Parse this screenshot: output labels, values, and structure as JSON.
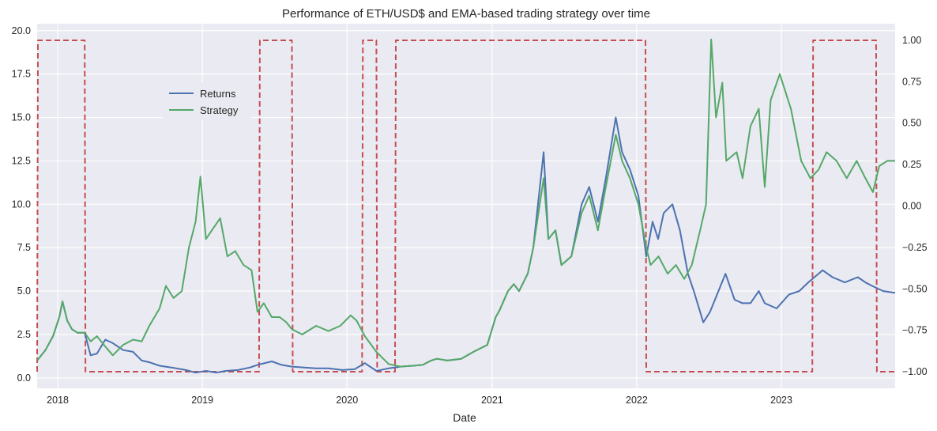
{
  "chart_data": {
    "type": "line",
    "title": "Performance of ETH/USD$ and EMA-based trading strategy over time",
    "xlabel": "Date",
    "ylabel": "",
    "x_ticks": [
      "2018",
      "2019",
      "2020",
      "2021",
      "2022",
      "2023"
    ],
    "y_left_ticks": [
      "0.0",
      "2.5",
      "5.0",
      "7.5",
      "10.0",
      "12.5",
      "15.0",
      "17.5",
      "20.0"
    ],
    "y_right_ticks": [
      "−1.00",
      "−0.75",
      "−0.50",
      "−0.25",
      "0.00",
      "0.25",
      "0.50",
      "0.75",
      "1.00"
    ],
    "xlim": [
      "2017-11-10",
      "2023-10-15"
    ],
    "ylim_left": [
      -0.6,
      20.4
    ],
    "ylim_right": [
      -1.1,
      1.1
    ],
    "grid": true,
    "legend": "upper-left-center",
    "colors": {
      "returns": "#4c72b0",
      "strategy": "#55a868",
      "position": "#c44e52",
      "background": "#eaeaf2",
      "grid": "#ffffff"
    },
    "series": [
      {
        "name": "Returns",
        "axis": "left",
        "x": [
          "2017-11-10",
          "2017-12-01",
          "2017-12-20",
          "2018-01-05",
          "2018-01-13",
          "2018-01-25",
          "2018-02-06",
          "2018-02-20",
          "2018-03-10",
          "2018-03-25",
          "2018-04-10",
          "2018-05-01",
          "2018-05-20",
          "2018-06-15",
          "2018-07-10",
          "2018-08-01",
          "2018-08-20",
          "2018-09-15",
          "2018-10-15",
          "2018-11-20",
          "2018-12-15",
          "2019-01-10",
          "2019-02-05",
          "2019-03-01",
          "2019-04-01",
          "2019-05-01",
          "2019-05-20",
          "2019-06-25",
          "2019-07-20",
          "2019-08-15",
          "2019-09-15",
          "2019-10-15",
          "2019-11-15",
          "2019-12-20",
          "2020-01-20",
          "2020-02-15",
          "2020-03-15",
          "2020-04-15",
          "2020-05-15",
          "2020-06-15",
          "2020-07-10",
          "2020-07-31",
          "2020-08-15",
          "2020-09-10",
          "2020-10-15",
          "2020-11-15",
          "2020-12-20",
          "2021-01-10",
          "2021-01-20",
          "2021-02-10",
          "2021-02-25",
          "2021-03-10",
          "2021-04-01",
          "2021-04-15",
          "2021-05-11",
          "2021-05-23",
          "2021-06-10",
          "2021-06-25",
          "2021-07-20",
          "2021-08-15",
          "2021-09-03",
          "2021-09-25",
          "2021-10-15",
          "2021-11-09",
          "2021-11-25",
          "2021-12-15",
          "2022-01-05",
          "2022-01-25",
          "2022-02-10",
          "2022-02-24",
          "2022-03-10",
          "2022-04-01",
          "2022-04-20",
          "2022-05-10",
          "2022-05-25",
          "2022-06-18",
          "2022-07-05",
          "2022-08-13",
          "2022-09-05",
          "2022-09-25",
          "2022-10-15",
          "2022-11-05",
          "2022-11-20",
          "2022-12-20",
          "2023-01-20",
          "2023-02-15",
          "2023-03-10",
          "2023-04-15",
          "2023-05-10",
          "2023-06-10",
          "2023-07-13",
          "2023-08-01",
          "2023-08-18",
          "2023-09-15",
          "2023-10-15"
        ],
        "y": [
          1.0,
          1.6,
          2.4,
          3.5,
          4.4,
          3.3,
          2.8,
          2.6,
          2.6,
          1.3,
          1.4,
          2.2,
          2.0,
          1.6,
          1.5,
          1.0,
          0.9,
          0.7,
          0.6,
          0.45,
          0.3,
          0.4,
          0.3,
          0.4,
          0.45,
          0.6,
          0.75,
          0.95,
          0.75,
          0.65,
          0.6,
          0.55,
          0.55,
          0.45,
          0.5,
          0.85,
          0.4,
          0.55,
          0.65,
          0.7,
          0.75,
          1.0,
          1.1,
          1.0,
          1.1,
          1.5,
          1.9,
          3.5,
          3.9,
          5.0,
          5.4,
          5.0,
          6.0,
          7.5,
          13.0,
          8.0,
          8.5,
          6.5,
          7.0,
          10.0,
          11.0,
          9.0,
          11.5,
          15.0,
          13.0,
          12.0,
          10.5,
          7.0,
          9.0,
          8.0,
          9.5,
          10.0,
          8.5,
          6.0,
          5.0,
          3.2,
          3.8,
          6.0,
          4.5,
          4.3,
          4.3,
          5.0,
          4.3,
          4.0,
          4.8,
          5.0,
          5.5,
          6.2,
          5.8,
          5.5,
          5.8,
          5.5,
          5.3,
          5.0,
          4.9
        ]
      },
      {
        "name": "Strategy",
        "axis": "left",
        "x": [
          "2017-11-10",
          "2017-12-01",
          "2017-12-20",
          "2018-01-05",
          "2018-01-13",
          "2018-01-25",
          "2018-02-06",
          "2018-02-20",
          "2018-03-10",
          "2018-03-25",
          "2018-04-10",
          "2018-05-01",
          "2018-05-20",
          "2018-06-15",
          "2018-07-10",
          "2018-08-01",
          "2018-08-20",
          "2018-09-15",
          "2018-10-01",
          "2018-10-20",
          "2018-11-10",
          "2018-11-28",
          "2018-12-15",
          "2018-12-27",
          "2019-01-10",
          "2019-01-25",
          "2019-02-15",
          "2019-03-05",
          "2019-03-25",
          "2019-04-15",
          "2019-05-05",
          "2019-05-20",
          "2019-06-05",
          "2019-06-25",
          "2019-07-15",
          "2019-08-01",
          "2019-08-15",
          "2019-09-10",
          "2019-10-15",
          "2019-11-15",
          "2019-12-15",
          "2020-01-10",
          "2020-01-25",
          "2020-02-15",
          "2020-03-15",
          "2020-04-15",
          "2020-05-15",
          "2020-06-15",
          "2020-07-10",
          "2020-07-31",
          "2020-08-15",
          "2020-09-10",
          "2020-10-15",
          "2020-11-15",
          "2020-12-20",
          "2021-01-10",
          "2021-01-20",
          "2021-02-10",
          "2021-02-25",
          "2021-03-10",
          "2021-04-01",
          "2021-04-15",
          "2021-05-11",
          "2021-05-23",
          "2021-06-10",
          "2021-06-25",
          "2021-07-20",
          "2021-08-15",
          "2021-09-03",
          "2021-09-25",
          "2021-10-15",
          "2021-11-09",
          "2021-11-25",
          "2021-12-15",
          "2022-01-05",
          "2022-01-25",
          "2022-02-05",
          "2022-02-25",
          "2022-03-20",
          "2022-04-10",
          "2022-05-01",
          "2022-05-20",
          "2022-06-10",
          "2022-06-25",
          "2022-07-08",
          "2022-07-20",
          "2022-08-05",
          "2022-08-15",
          "2022-09-10",
          "2022-09-25",
          "2022-10-15",
          "2022-11-05",
          "2022-11-20",
          "2022-12-05",
          "2022-12-28",
          "2023-01-25",
          "2023-02-20",
          "2023-03-15",
          "2023-04-05",
          "2023-04-25",
          "2023-05-20",
          "2023-06-15",
          "2023-07-10",
          "2023-08-01",
          "2023-08-20",
          "2023-09-05",
          "2023-09-25",
          "2023-10-15"
        ],
        "y": [
          1.0,
          1.6,
          2.4,
          3.5,
          4.4,
          3.3,
          2.8,
          2.6,
          2.6,
          2.1,
          2.4,
          1.8,
          1.3,
          1.9,
          2.2,
          2.1,
          3.0,
          4.0,
          5.3,
          4.6,
          5.0,
          7.5,
          9.0,
          11.6,
          8.0,
          8.5,
          9.2,
          7.0,
          7.3,
          6.5,
          6.2,
          3.8,
          4.3,
          3.5,
          3.5,
          3.2,
          2.8,
          2.5,
          3.0,
          2.7,
          3.0,
          3.6,
          3.3,
          2.4,
          1.5,
          0.8,
          0.65,
          0.7,
          0.75,
          1.0,
          1.1,
          1.0,
          1.1,
          1.5,
          1.9,
          3.5,
          3.9,
          5.0,
          5.4,
          5.0,
          6.0,
          7.5,
          11.5,
          8.0,
          8.5,
          6.5,
          7.0,
          9.5,
          10.5,
          8.5,
          11.0,
          14.0,
          12.5,
          11.5,
          10.0,
          7.5,
          6.5,
          7.0,
          6.0,
          6.5,
          5.7,
          6.5,
          8.5,
          10.0,
          19.5,
          15.0,
          17.0,
          12.5,
          13.0,
          11.5,
          14.5,
          15.5,
          11.0,
          16.0,
          17.5,
          15.5,
          12.5,
          11.5,
          12.0,
          13.0,
          12.5,
          11.5,
          12.5,
          11.5,
          10.7,
          12.2,
          12.5,
          12.5
        ]
      },
      {
        "name": "",
        "axis": "right",
        "style": "dashed",
        "x": [
          "2017-11-10",
          "2017-11-12",
          "2018-03-10",
          "2018-03-12",
          "2019-05-24",
          "2019-05-26",
          "2019-08-15",
          "2019-08-17",
          "2020-02-08",
          "2020-02-10",
          "2020-03-15",
          "2020-03-17",
          "2020-05-01",
          "2020-05-03",
          "2022-01-23",
          "2022-01-25",
          "2023-03-20",
          "2023-03-22",
          "2023-08-28",
          "2023-08-30",
          "2023-10-15"
        ],
        "y": [
          -1,
          1,
          1,
          -1,
          -1,
          1,
          1,
          -1,
          -1,
          1,
          1,
          -1,
          -1,
          1,
          1,
          -1,
          -1,
          1,
          1,
          -1,
          -1
        ]
      }
    ]
  }
}
